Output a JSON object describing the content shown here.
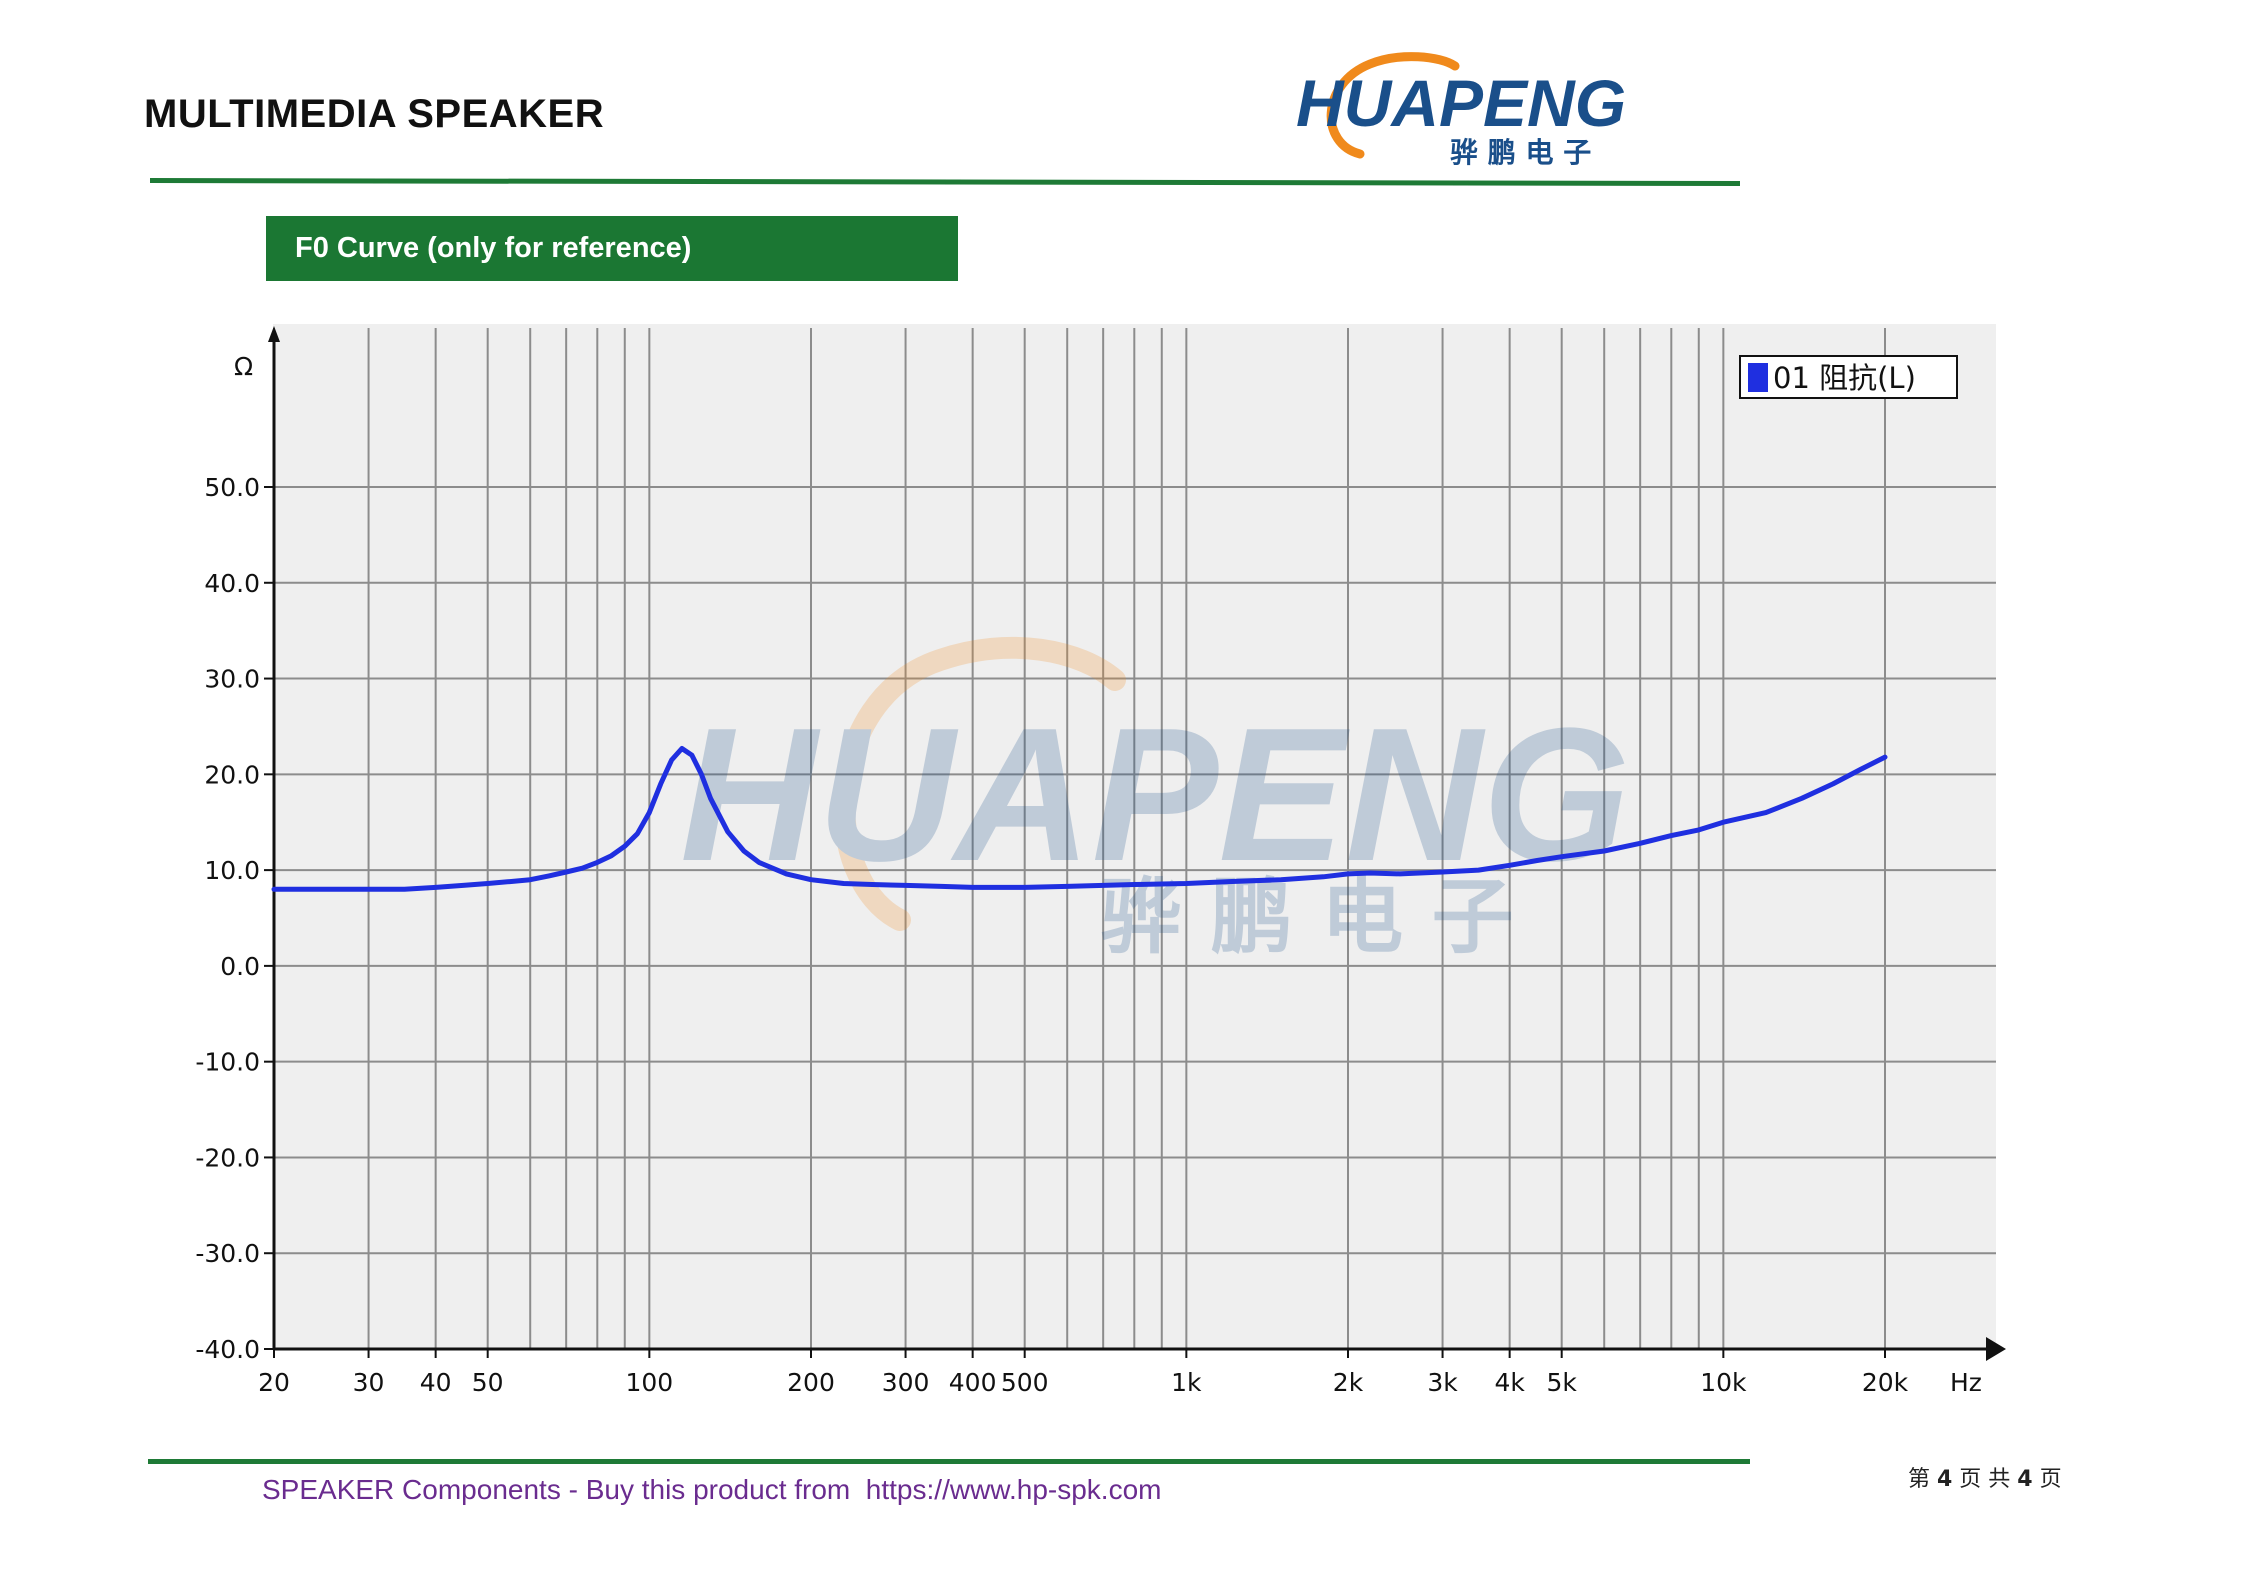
{
  "header": {
    "title": "MULTIMEDIA SPEAKER",
    "logo_text": "HUAPENG",
    "logo_subtext": "骅 鹏 电 子"
  },
  "section": {
    "banner": "F0 Curve (only for reference)"
  },
  "colors": {
    "brand_green": "#1b7733",
    "logo_blue": "#1a4f8a",
    "logo_orange": "#f08a1c",
    "curve_blue": "#1f2fe0",
    "footer_purple": "#6a2c8f"
  },
  "chart_data": {
    "type": "line",
    "title": "",
    "xlabel": "Hz",
    "ylabel": "Ω",
    "x_scale": "log",
    "xlim": [
      20,
      20000
    ],
    "ylim": [
      -40,
      60
    ],
    "grid": true,
    "legend_position": "top-right",
    "x_ticks": [
      {
        "value": 20,
        "label": "20"
      },
      {
        "value": 30,
        "label": "30"
      },
      {
        "value": 40,
        "label": "40"
      },
      {
        "value": 50,
        "label": "50"
      },
      {
        "value": 100,
        "label": "100"
      },
      {
        "value": 200,
        "label": "200"
      },
      {
        "value": 300,
        "label": "300"
      },
      {
        "value": 400,
        "label": "400"
      },
      {
        "value": 500,
        "label": "500"
      },
      {
        "value": 1000,
        "label": "1k"
      },
      {
        "value": 2000,
        "label": "2k"
      },
      {
        "value": 3000,
        "label": "3k"
      },
      {
        "value": 4000,
        "label": "4k"
      },
      {
        "value": 5000,
        "label": "5k"
      },
      {
        "value": 10000,
        "label": "10k"
      },
      {
        "value": 20000,
        "label": "20k"
      }
    ],
    "y_ticks": [
      {
        "value": 50,
        "label": "50.0"
      },
      {
        "value": 40,
        "label": "40.0"
      },
      {
        "value": 30,
        "label": "30.0"
      },
      {
        "value": 20,
        "label": "20.0"
      },
      {
        "value": 10,
        "label": "10.0"
      },
      {
        "value": 0,
        "label": "0.0"
      },
      {
        "value": -10,
        "label": "-10.0"
      },
      {
        "value": -20,
        "label": "-20.0"
      },
      {
        "value": -30,
        "label": "-30.0"
      },
      {
        "value": -40,
        "label": "-40.0"
      }
    ],
    "series": [
      {
        "name": "01 阻抗(L)",
        "color": "#1f2fe0",
        "x": [
          20,
          25,
          30,
          35,
          40,
          45,
          50,
          55,
          60,
          65,
          70,
          75,
          80,
          85,
          90,
          95,
          100,
          105,
          110,
          115,
          120,
          125,
          130,
          140,
          150,
          160,
          180,
          200,
          230,
          260,
          300,
          350,
          400,
          450,
          500,
          600,
          700,
          800,
          1000,
          1200,
          1500,
          1800,
          2000,
          2200,
          2500,
          3000,
          3500,
          4000,
          4500,
          5000,
          6000,
          7000,
          8000,
          9000,
          10000,
          12000,
          14000,
          16000,
          18000,
          20000
        ],
        "y": [
          8.0,
          8.0,
          8.0,
          8.0,
          8.2,
          8.4,
          8.6,
          8.8,
          9.0,
          9.4,
          9.8,
          10.2,
          10.8,
          11.5,
          12.5,
          13.8,
          16.0,
          19.0,
          21.5,
          22.7,
          22.0,
          20.0,
          17.5,
          14.0,
          12.0,
          10.8,
          9.6,
          9.0,
          8.6,
          8.5,
          8.4,
          8.3,
          8.2,
          8.2,
          8.2,
          8.3,
          8.4,
          8.5,
          8.6,
          8.8,
          9.0,
          9.3,
          9.6,
          9.7,
          9.6,
          9.8,
          10.0,
          10.5,
          11.0,
          11.4,
          12.0,
          12.8,
          13.6,
          14.2,
          15.0,
          16.0,
          17.5,
          19.0,
          20.5,
          21.8
        ]
      }
    ]
  },
  "footer": {
    "text": "SPEAKER Components - Buy this product from  https://www.hp-spk.com",
    "page_prefix": "第 ",
    "page_current": "4",
    "page_mid": " 页 共 ",
    "page_total": "4",
    "page_suffix": " 页"
  }
}
